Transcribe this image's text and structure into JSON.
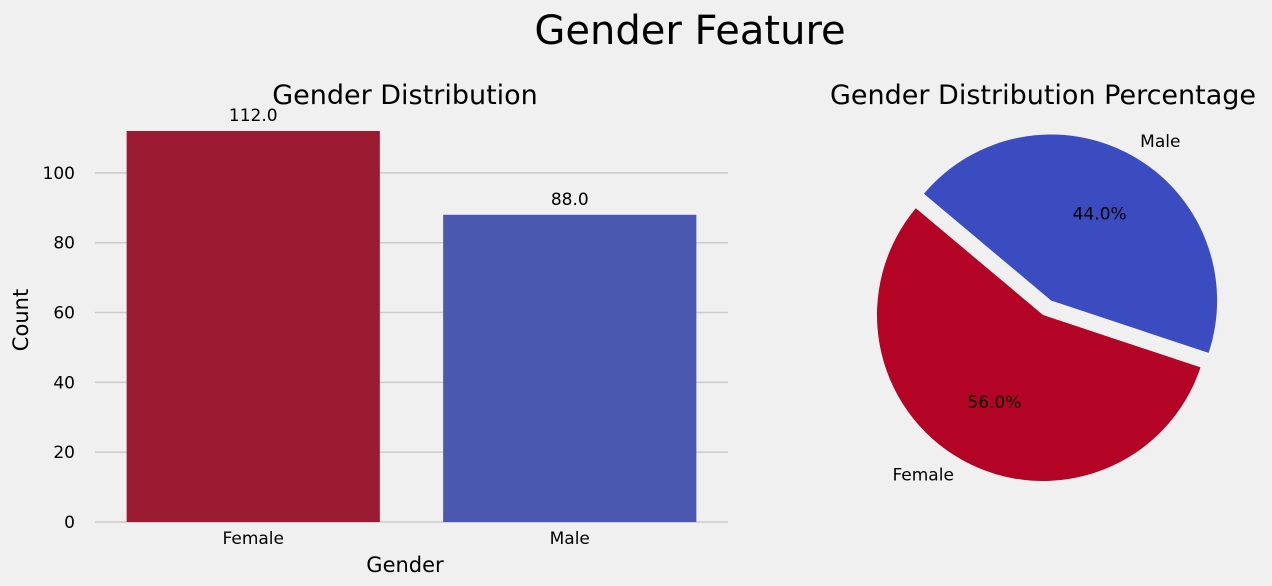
{
  "figure": {
    "suptitle": "Gender Feature",
    "background": "#f0f0f0"
  },
  "chart_data": [
    {
      "type": "bar",
      "title": "Gender Distribution",
      "xlabel": "Gender",
      "ylabel": "Count",
      "categories": [
        "Female",
        "Male"
      ],
      "values": [
        112,
        88
      ],
      "data_labels": [
        "112.0",
        "88.0"
      ],
      "colors": [
        "#9b1b32",
        "#4b58b0"
      ],
      "ylim": [
        0,
        112
      ],
      "yticks": [
        0,
        20,
        40,
        60,
        80,
        100
      ],
      "grid": true,
      "grid_color": "#cbcbcb"
    },
    {
      "type": "pie",
      "title": "Gender Distribution Percentage",
      "labels": [
        "Female",
        "Male"
      ],
      "values": [
        56.0,
        44.0
      ],
      "autopct": [
        "56.0%",
        "44.0%"
      ],
      "colors": [
        "#b40426",
        "#3b4cc0"
      ],
      "explode": [
        0,
        0.1
      ],
      "startangle_deg": 140
    }
  ]
}
